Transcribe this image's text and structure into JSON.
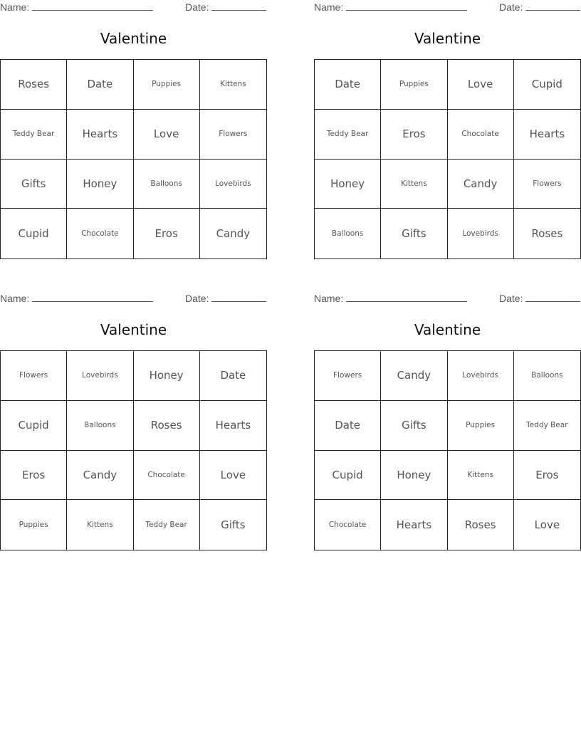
{
  "name_label": "Name:",
  "date_label": "Date:",
  "cards": [
    {
      "title": "Valentine",
      "cells": [
        "Roses",
        "Date",
        "Puppies",
        "Kittens",
        "Teddy Bear",
        "Hearts",
        "Love",
        "Flowers",
        "Gifts",
        "Honey",
        "Balloons",
        "Lovebirds",
        "Cupid",
        "Chocolate",
        "Eros",
        "Candy"
      ]
    },
    {
      "title": "Valentine",
      "cells": [
        "Date",
        "Puppies",
        "Love",
        "Cupid",
        "Teddy Bear",
        "Eros",
        "Chocolate",
        "Hearts",
        "Honey",
        "Kittens",
        "Candy",
        "Flowers",
        "Balloons",
        "Gifts",
        "Lovebirds",
        "Roses"
      ]
    },
    {
      "title": "Valentine",
      "cells": [
        "Flowers",
        "Lovebirds",
        "Honey",
        "Date",
        "Cupid",
        "Balloons",
        "Roses",
        "Hearts",
        "Eros",
        "Candy",
        "Chocolate",
        "Love",
        "Puppies",
        "Kittens",
        "Teddy Bear",
        "Gifts"
      ]
    },
    {
      "title": "Valentine",
      "cells": [
        "Flowers",
        "Candy",
        "Lovebirds",
        "Balloons",
        "Date",
        "Gifts",
        "Puppies",
        "Teddy Bear",
        "Cupid",
        "Honey",
        "Kittens",
        "Eros",
        "Chocolate",
        "Hearts",
        "Roses",
        "Love"
      ]
    }
  ]
}
